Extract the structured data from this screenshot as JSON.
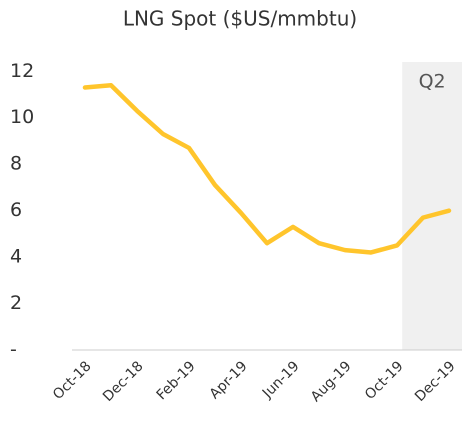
{
  "chart_data": {
    "type": "line",
    "title": "LNG Spot ($US/mmbtu)",
    "categories": [
      "Oct-18",
      null,
      "Dec-18",
      null,
      "Feb-19",
      null,
      "Apr-19",
      null,
      "Jun-19",
      null,
      "Aug-19",
      null,
      "Oct-19",
      null,
      "Dec-19"
    ],
    "series": [
      {
        "name": "LNG Spot",
        "color": "#ffc52c",
        "values": [
          11.3,
          11.4,
          10.3,
          9.3,
          8.7,
          7.1,
          5.9,
          4.6,
          5.3,
          4.6,
          4.3,
          4.2,
          4.5,
          5.7,
          6.0
        ]
      }
    ],
    "ylim": [
      0,
      12.4
    ],
    "yticks": [
      {
        "value": 0,
        "label": "-"
      },
      2,
      4,
      6,
      8,
      10,
      12
    ],
    "highlight": {
      "label": "Q2",
      "from": "Oct-19",
      "to": "Dec-19",
      "color": "#f0f0f0"
    },
    "grid": false
  }
}
